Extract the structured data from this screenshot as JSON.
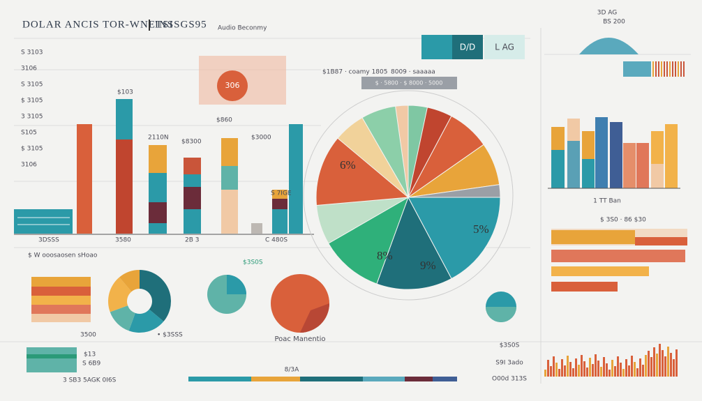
{
  "header": {
    "title": "DOLAR ANCIS  TOR-WNETSI",
    "code": "INSSGS95",
    "subtitle": "Audio Beconmy"
  },
  "left_panel": {
    "labels": [
      "S 3103",
      "3106",
      "S 3105",
      "$ 3105",
      "3 3105",
      "S105",
      "$ 3105",
      "3106"
    ]
  },
  "main_bars": {
    "top_labels": [
      "$103",
      "$860",
      "2110N",
      "$8300",
      "$3000",
      "S 7IGE"
    ],
    "axis_labels": [
      "3DSSS",
      "3580",
      "2B 3",
      "C 480S"
    ],
    "badge": "306"
  },
  "banner": {
    "left": "$1B87 · coamy 1805",
    "right": "8009 · saaaaa",
    "strip": "$ · 5800 · $ 8000 · 5000"
  },
  "top_right": {
    "boxes": [
      "D/D",
      "L AG"
    ],
    "title": "3D AG",
    "subtitle": "BS 200"
  },
  "pie": {
    "labels": [
      "6%",
      "5%",
      "8%",
      "9%"
    ]
  },
  "right_panel": {
    "caption": "1 TT Ban",
    "hbar_label": "$ 3S0 · 86 $30"
  },
  "bottom": {
    "legend_title": "$ W ooosaosen sHoao",
    "badge": "$3S0S",
    "circle_label": "Poac Manentio",
    "strip_label": "8/3A",
    "stats": [
      "3500",
      "$13",
      "S 6B9"
    ],
    "footer": "3 SB3 5AGK 0I6S",
    "right_stats": [
      "$3S0S",
      "S9I 3ado",
      "O00d 313S"
    ],
    "mid": "• $3SSS"
  }
}
